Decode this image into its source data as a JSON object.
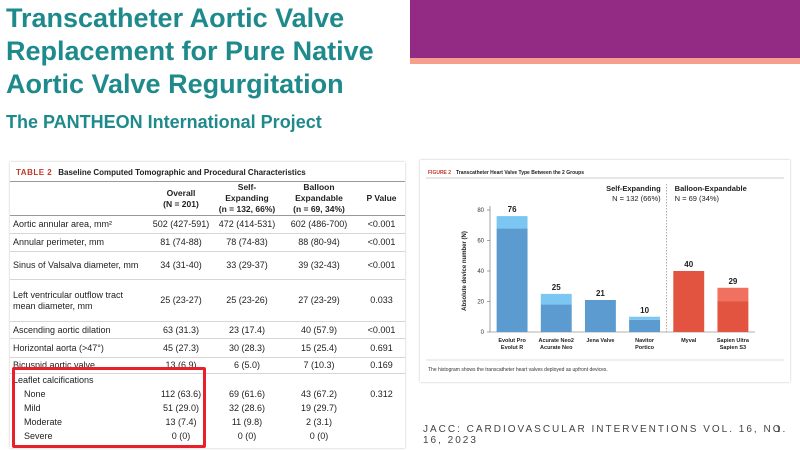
{
  "header": {
    "title_lines": [
      "Transcatheter Aortic Valve",
      "Replacement for Pure Native",
      "Aortic Valve Regurgitation"
    ],
    "subtitle": "The PANTHEON International Project"
  },
  "table": {
    "label": "TABLE 2",
    "caption": "Baseline Computed Tomographic and Procedural Characteristics",
    "columns": [
      [
        "Overall",
        "(N = 201)"
      ],
      [
        "Self-Expanding",
        "(n = 132, 66%)"
      ],
      [
        "Balloon Expandable",
        "(n = 69, 34%)"
      ],
      [
        "P Value"
      ]
    ],
    "rows": [
      [
        "Aortic annular area, mm²",
        "502 (427-591)",
        "472 (414-531)",
        "602 (486-700)",
        "<0.001"
      ],
      [
        "Annular perimeter, mm",
        "81 (74-88)",
        "78 (74-83)",
        "88 (80-94)",
        "<0.001"
      ],
      [
        "Sinus of Valsalva diameter, mm",
        "34 (31-40)",
        "33 (29-37)",
        "39 (32-43)",
        "<0.001"
      ],
      [
        "Left ventricular outflow tract mean diameter, mm",
        "25 (23-27)",
        "25 (23-26)",
        "27 (23-29)",
        "0.033"
      ],
      [
        "Ascending aortic dilation",
        "63 (31.3)",
        "23 (17.4)",
        "40 (57.9)",
        "<0.001"
      ],
      [
        "Horizontal aorta (>47°)",
        "45 (27.3)",
        "30 (28.3)",
        "15 (25.4)",
        "0.691"
      ],
      [
        "Bicuspid aortic valve",
        "13 (6.9)",
        "6 (5.0)",
        "7 (10.3)",
        "0.169"
      ]
    ],
    "section": {
      "label": "Leaflet calcifications",
      "p_value": "0.312",
      "rows": [
        [
          "None",
          "112 (63.6)",
          "69 (61.6)",
          "43 (67.2)"
        ],
        [
          "Mild",
          "51 (29.0)",
          "32 (28.6)",
          "19 (29.7)"
        ],
        [
          "Moderate",
          "13 (7.4)",
          "11 (9.8)",
          "2 (3.1)"
        ],
        [
          "Severe",
          "0 (0)",
          "0 (0)",
          "0 (0)"
        ]
      ]
    }
  },
  "chart_data": {
    "type": "stacked_bar",
    "label": "FIGURE 2",
    "title": "Transcatheter Heart Valve Type Between the 2 Groups",
    "groups": [
      {
        "name": "Self-Expanding",
        "n": "N = 132 (66%)"
      },
      {
        "name": "Balloon-Expandable",
        "n": "N = 69 (34%)"
      }
    ],
    "y_label": "Absolute device number (N)",
    "categories": [
      [
        "Evolut Pro",
        "Evolut R"
      ],
      [
        "Acurate Neo2",
        "Acurate Neo"
      ],
      [
        "Jena Valve"
      ],
      [
        "Navitor",
        "Portico"
      ],
      [
        "Myval"
      ],
      [
        "Sapien Ultra",
        "Sapien S3"
      ]
    ],
    "series": [
      {
        "colors": [
          "#5b9bd0",
          "#5b9bd0",
          "#5b9bd0",
          "#5b9bd0",
          "#e2543f",
          "#e2543f"
        ],
        "values": [
          68,
          18,
          21,
          8,
          40,
          20
        ]
      },
      {
        "colors": [
          "#7cc6f2",
          "#7cc6f2",
          "#7cc6f2",
          "#7cc6f2",
          "#f07160",
          "#f07160"
        ],
        "values": [
          8,
          7,
          null,
          2,
          null,
          9
        ]
      }
    ],
    "total_labels": [
      76,
      25,
      21,
      10,
      40,
      29
    ],
    "ylim": [
      0,
      80
    ],
    "yticks": [
      0,
      20,
      40,
      60,
      80
    ],
    "footnote": "The histogram shows the transcatheter heart valves deployed as upfront devices."
  },
  "citation": "JACC: CARDIOVASCULAR INTERVENTIONS VOL. 16, NO. 16, 2023",
  "page_number": "1"
}
